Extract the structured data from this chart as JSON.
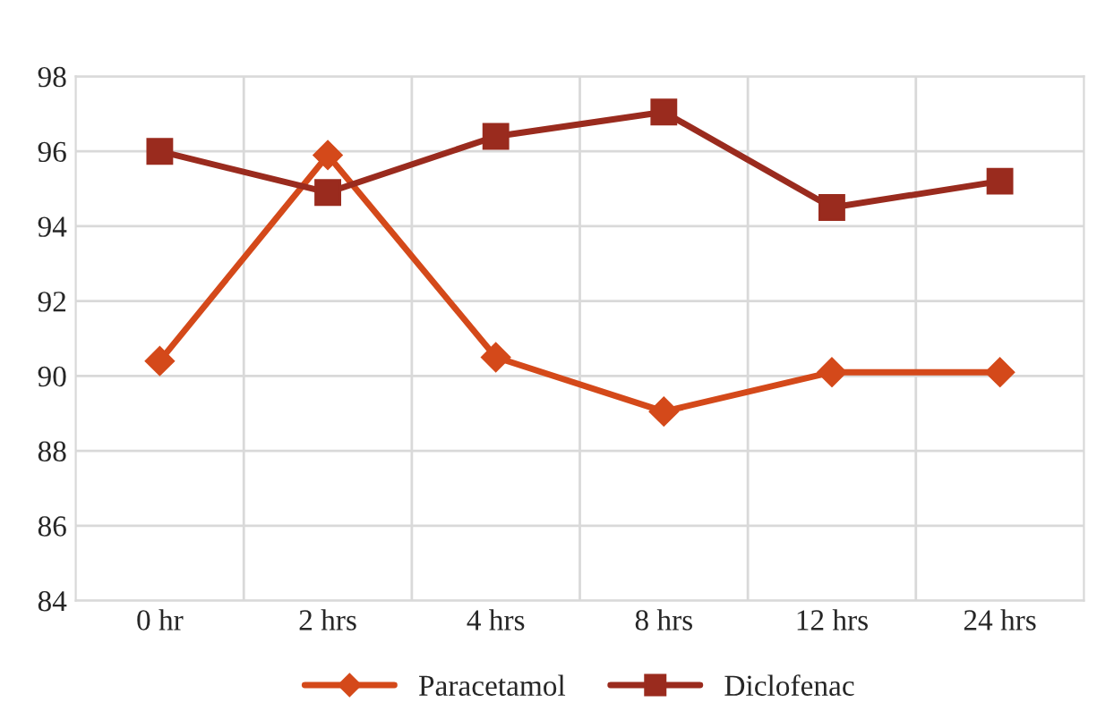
{
  "chart_data": {
    "type": "line",
    "categories": [
      "0 hr",
      "2 hrs",
      "4 hrs",
      "8 hrs",
      "12 hrs",
      "24 hrs"
    ],
    "series": [
      {
        "name": "Paracetamol",
        "color": "#d4491a",
        "marker": "diamond",
        "values": [
          90.4,
          95.9,
          90.5,
          89.05,
          90.1,
          90.1
        ]
      },
      {
        "name": "Diclofenac",
        "color": "#9a2b1e",
        "marker": "square",
        "values": [
          96.0,
          94.9,
          96.4,
          97.05,
          94.5,
          95.2
        ]
      }
    ],
    "ylim": [
      84,
      98
    ],
    "yticks": [
      84,
      86,
      88,
      90,
      92,
      94,
      96,
      98
    ],
    "grid": true,
    "legend": "bottom",
    "line_style": "solid"
  }
}
